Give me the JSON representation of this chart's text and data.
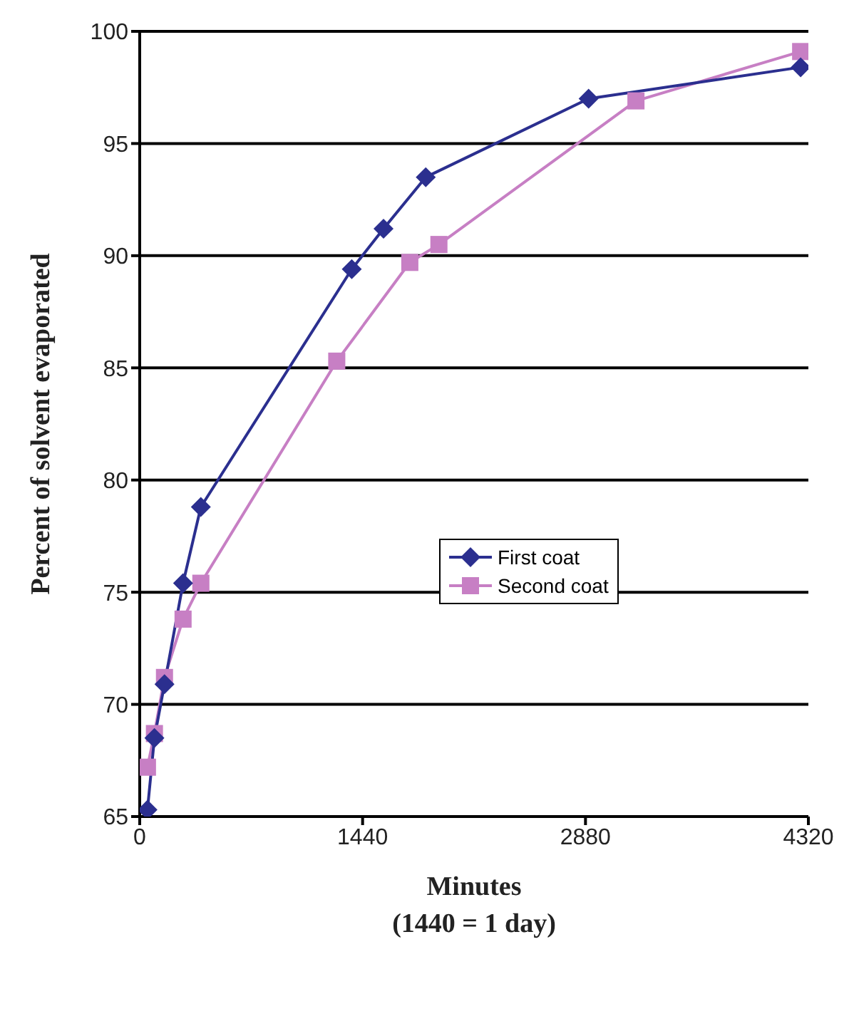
{
  "chart_data": {
    "type": "line",
    "xlabel": "Minutes\n(1440 = 1 day)",
    "ylabel": "Percent of solvent evaporated",
    "xlim": [
      0,
      4320
    ],
    "xticks": [
      0,
      1440,
      2880,
      4320
    ],
    "ylim": [
      65,
      100
    ],
    "yticks": [
      65,
      70,
      75,
      80,
      85,
      90,
      95,
      100
    ],
    "grid": "y",
    "legend": "right",
    "line_style": "solid",
    "series": [
      {
        "name": "First coat",
        "color": "#2b2f8f",
        "marker": "diamond",
        "x": [
          50,
          95,
          160,
          280,
          395,
          1370,
          1575,
          1848,
          2900,
          4270
        ],
        "values": [
          65.3,
          68.5,
          70.9,
          75.4,
          78.8,
          89.4,
          91.2,
          93.5,
          97.0,
          98.4
        ]
      },
      {
        "name": "Second coat",
        "color": "#c77fc4",
        "marker": "square",
        "x": [
          50,
          95,
          160,
          280,
          395,
          1273,
          1745,
          1933,
          3206,
          4270
        ],
        "values": [
          67.2,
          68.7,
          71.2,
          73.8,
          75.4,
          85.3,
          89.7,
          90.5,
          96.9,
          99.1
        ]
      }
    ]
  }
}
